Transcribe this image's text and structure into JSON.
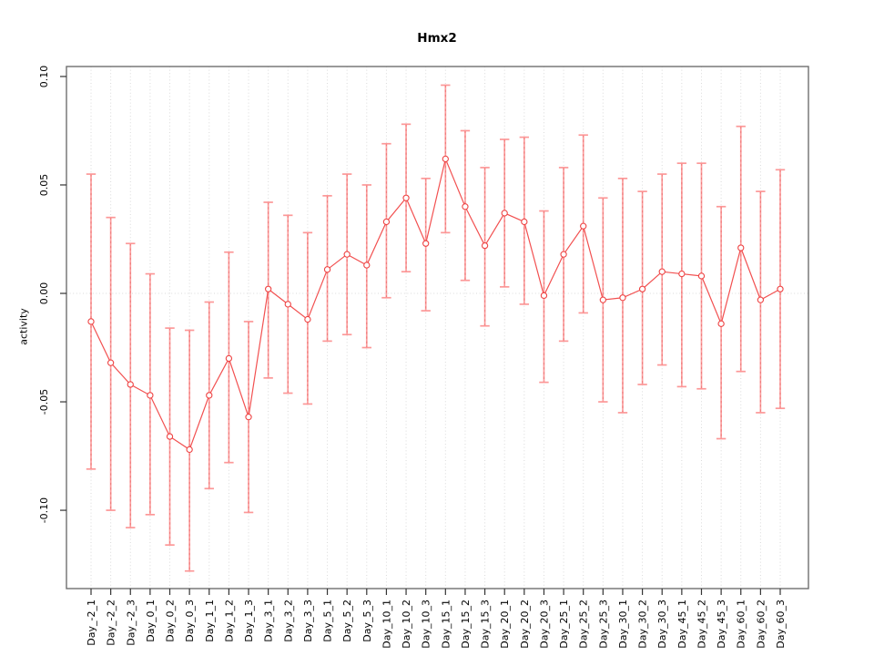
{
  "page": {
    "title": "Hmx2"
  },
  "chart_data": {
    "type": "scatter",
    "subtype": "points-with-error-bars-connected-by-line",
    "title": "Hmx2",
    "xlabel": "",
    "ylabel": "activity",
    "legend": "none",
    "grid": {
      "vertical": "dotted line at every category",
      "horizontal": "dotted line at y=0 only"
    },
    "categories": [
      "Day_-2_1",
      "Day_-2_2",
      "Day_-2_3",
      "Day_0_1",
      "Day_0_2",
      "Day_0_3",
      "Day_1_1",
      "Day_1_2",
      "Day_1_3",
      "Day_3_1",
      "Day_3_2",
      "Day_3_3",
      "Day_5_1",
      "Day_5_2",
      "Day_5_3",
      "Day_10_1",
      "Day_10_2",
      "Day_10_3",
      "Day_15_1",
      "Day_15_2",
      "Day_15_3",
      "Day_20_1",
      "Day_20_2",
      "Day_20_3",
      "Day_25_1",
      "Day_25_2",
      "Day_25_3",
      "Day_30_1",
      "Day_30_2",
      "Day_30_3",
      "Day_45_1",
      "Day_45_2",
      "Day_45_3",
      "Day_60_1",
      "Day_60_2",
      "Day_60_3"
    ],
    "series": [
      {
        "name": "activity",
        "means": [
          -0.013,
          -0.032,
          -0.042,
          -0.047,
          -0.066,
          -0.072,
          -0.047,
          -0.03,
          -0.057,
          0.002,
          -0.005,
          -0.012,
          0.011,
          0.018,
          0.013,
          0.033,
          0.044,
          0.023,
          0.062,
          0.04,
          0.022,
          0.037,
          0.033,
          -0.001,
          0.018,
          0.031,
          -0.003,
          -0.002,
          0.002,
          0.01,
          0.009,
          0.008,
          -0.014,
          0.021,
          -0.003,
          0.002
        ],
        "lower": [
          -0.081,
          -0.1,
          -0.108,
          -0.102,
          -0.116,
          -0.128,
          -0.09,
          -0.078,
          -0.101,
          -0.039,
          -0.046,
          -0.051,
          -0.022,
          -0.019,
          -0.025,
          -0.002,
          0.01,
          -0.008,
          0.028,
          0.006,
          -0.015,
          0.003,
          -0.005,
          -0.041,
          -0.022,
          -0.009,
          -0.05,
          -0.055,
          -0.042,
          -0.033,
          -0.043,
          -0.044,
          -0.067,
          -0.036,
          -0.055,
          -0.053
        ],
        "upper": [
          0.055,
          0.035,
          0.023,
          0.009,
          -0.016,
          -0.017,
          -0.004,
          0.019,
          -0.013,
          0.042,
          0.036,
          0.028,
          0.045,
          0.055,
          0.05,
          0.069,
          0.078,
          0.053,
          0.096,
          0.075,
          0.058,
          0.071,
          0.072,
          0.038,
          0.058,
          0.073,
          0.044,
          0.053,
          0.047,
          0.055,
          0.06,
          0.06,
          0.04,
          0.077,
          0.047,
          0.057
        ]
      }
    ],
    "yticks": [
      0.1,
      0.05,
      0.0,
      -0.05,
      -0.1
    ],
    "ytick_labels": [
      "0.10",
      "0.05",
      "0.00",
      "-0.05",
      "-0.10"
    ],
    "ylim": [
      -0.1361,
      0.1046
    ],
    "colors": {
      "point_stroke": "#ee4444",
      "line": "#f25050",
      "error_bar": "#fc9393",
      "error_bar_dash_overlay": "#e04848",
      "gridline": "#dadada",
      "axis_box": "#6f6f6f",
      "tick": "#333333",
      "text": "#000000"
    }
  }
}
